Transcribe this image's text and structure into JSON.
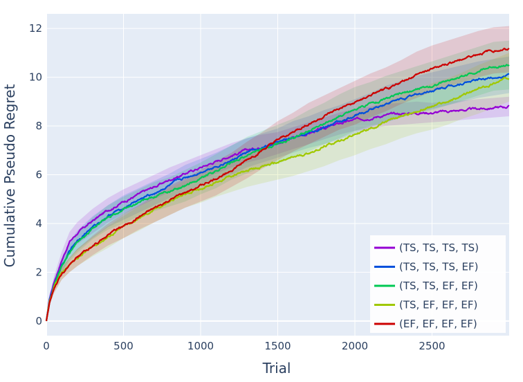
{
  "chart_data": {
    "type": "line",
    "xlabel": "Trial",
    "ylabel": "Cumulative Pseudo Regret",
    "xlim": [
      0,
      3000
    ],
    "ylim": [
      -0.6,
      12.6
    ],
    "xticks": [
      0,
      500,
      1000,
      1500,
      2000,
      2500
    ],
    "yticks": [
      0,
      2,
      4,
      6,
      8,
      10,
      12
    ],
    "grid": true,
    "legend_position": "bottom-right",
    "background_color": "#e5ecf6",
    "x": [
      0,
      20,
      50,
      100,
      150,
      200,
      300,
      400,
      500,
      600,
      700,
      800,
      900,
      1000,
      1100,
      1200,
      1300,
      1400,
      1500,
      1600,
      1700,
      1800,
      1900,
      2000,
      2100,
      2200,
      2300,
      2400,
      2500,
      2600,
      2700,
      2800,
      2900,
      3000
    ],
    "series": [
      {
        "name": "(TS, TS, TS, TS)",
        "color": "#9400d3",
        "values": [
          0,
          0.9,
          1.6,
          2.5,
          3.25,
          3.6,
          4.1,
          4.55,
          4.9,
          5.2,
          5.5,
          5.8,
          6.05,
          6.3,
          6.55,
          6.8,
          7.0,
          7.15,
          7.3,
          7.5,
          7.7,
          7.9,
          8.1,
          8.25,
          8.35,
          8.45,
          8.5,
          8.55,
          8.55,
          8.6,
          8.65,
          8.7,
          8.75,
          8.8
        ],
        "band": [
          0,
          0.15,
          0.25,
          0.35,
          0.4,
          0.45,
          0.5,
          0.5,
          0.5,
          0.5,
          0.5,
          0.5,
          0.5,
          0.5,
          0.5,
          0.5,
          0.5,
          0.5,
          0.45,
          0.45,
          0.45,
          0.45,
          0.45,
          0.45,
          0.45,
          0.45,
          0.45,
          0.45,
          0.4,
          0.4,
          0.4,
          0.4,
          0.4,
          0.4
        ]
      },
      {
        "name": "(TS, TS, TS, EF)",
        "color": "#0050dc",
        "values": [
          0,
          0.85,
          1.5,
          2.3,
          2.9,
          3.3,
          3.85,
          4.3,
          4.65,
          4.95,
          5.25,
          5.55,
          5.85,
          6.1,
          6.35,
          6.6,
          6.9,
          7.1,
          7.3,
          7.55,
          7.75,
          7.95,
          8.15,
          8.4,
          8.65,
          8.9,
          9.1,
          9.3,
          9.45,
          9.6,
          9.75,
          9.9,
          10.0,
          10.1
        ],
        "band": [
          0,
          0.15,
          0.25,
          0.3,
          0.35,
          0.4,
          0.45,
          0.45,
          0.5,
          0.5,
          0.5,
          0.5,
          0.55,
          0.55,
          0.55,
          0.6,
          0.6,
          0.6,
          0.6,
          0.65,
          0.65,
          0.7,
          0.7,
          0.7,
          0.7,
          0.75,
          0.75,
          0.75,
          0.75,
          0.75,
          0.75,
          0.75,
          0.75,
          0.75
        ]
      },
      {
        "name": "(TS, TS, EF, EF)",
        "color": "#00c853",
        "values": [
          0,
          0.8,
          1.45,
          2.2,
          2.8,
          3.2,
          3.8,
          4.25,
          4.55,
          4.85,
          5.1,
          5.3,
          5.55,
          5.85,
          6.15,
          6.5,
          6.8,
          7.05,
          7.25,
          7.5,
          7.8,
          8.1,
          8.4,
          8.7,
          8.9,
          9.1,
          9.3,
          9.5,
          9.65,
          9.85,
          10.05,
          10.25,
          10.45,
          10.5
        ],
        "band": [
          0,
          0.15,
          0.2,
          0.3,
          0.35,
          0.4,
          0.45,
          0.5,
          0.55,
          0.55,
          0.6,
          0.6,
          0.65,
          0.65,
          0.7,
          0.7,
          0.75,
          0.75,
          0.8,
          0.8,
          0.85,
          0.85,
          0.9,
          0.9,
          0.9,
          0.95,
          0.95,
          0.95,
          1.0,
          1.0,
          1.0,
          1.0,
          1.0,
          1.0
        ]
      },
      {
        "name": "(TS, EF, EF, EF)",
        "color": "#a0c800",
        "values": [
          0,
          0.75,
          1.35,
          1.95,
          2.3,
          2.6,
          3.05,
          3.45,
          3.85,
          4.2,
          4.55,
          4.9,
          5.2,
          5.45,
          5.7,
          5.95,
          6.15,
          6.35,
          6.5,
          6.7,
          6.9,
          7.15,
          7.4,
          7.65,
          7.9,
          8.15,
          8.4,
          8.6,
          8.8,
          9.0,
          9.25,
          9.5,
          9.75,
          10.0
        ],
        "band": [
          0,
          0.1,
          0.2,
          0.25,
          0.3,
          0.35,
          0.4,
          0.45,
          0.45,
          0.5,
          0.5,
          0.55,
          0.55,
          0.6,
          0.6,
          0.65,
          0.65,
          0.7,
          0.7,
          0.75,
          0.75,
          0.8,
          0.8,
          0.85,
          0.85,
          0.9,
          0.9,
          0.9,
          0.95,
          0.95,
          0.95,
          1.0,
          1.0,
          1.0
        ]
      },
      {
        "name": "(EF, EF, EF, EF)",
        "color": "#cc0000",
        "values": [
          0,
          0.75,
          1.35,
          1.95,
          2.3,
          2.6,
          3.1,
          3.55,
          3.9,
          4.25,
          4.6,
          4.95,
          5.25,
          5.55,
          5.85,
          6.2,
          6.6,
          7.0,
          7.4,
          7.75,
          8.1,
          8.4,
          8.7,
          8.95,
          9.25,
          9.5,
          9.8,
          10.1,
          10.35,
          10.55,
          10.75,
          10.95,
          11.1,
          11.15
        ],
        "band": [
          0,
          0.1,
          0.2,
          0.25,
          0.3,
          0.35,
          0.4,
          0.45,
          0.5,
          0.5,
          0.55,
          0.6,
          0.6,
          0.65,
          0.7,
          0.7,
          0.75,
          0.75,
          0.8,
          0.8,
          0.85,
          0.85,
          0.85,
          0.9,
          0.9,
          0.9,
          0.9,
          0.95,
          0.95,
          0.95,
          0.95,
          0.95,
          0.95,
          0.95
        ]
      }
    ]
  }
}
